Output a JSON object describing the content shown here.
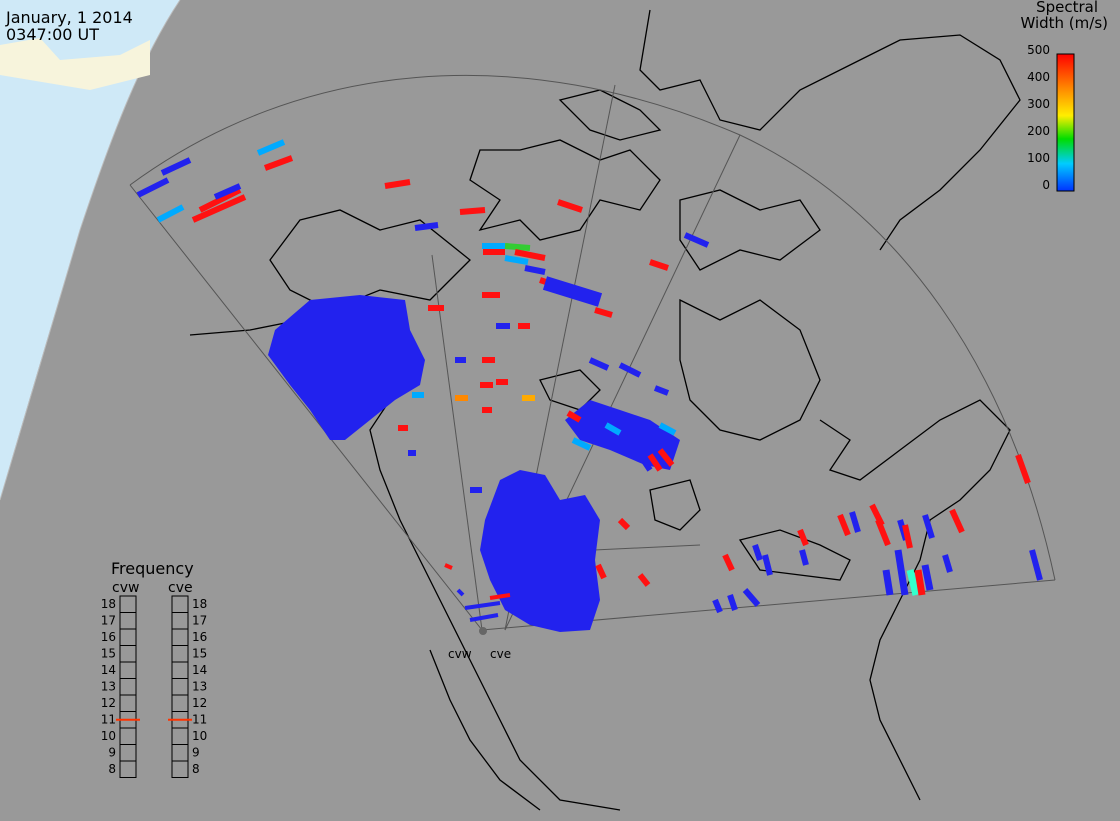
{
  "header": {
    "date": "January, 1 2014",
    "time": "0347:00 UT"
  },
  "colorbar": {
    "title_line1": "Spectral",
    "title_line2": "Width (m/s)",
    "ticks": [
      "500",
      "400",
      "300",
      "200",
      "100",
      "0"
    ],
    "min": 0,
    "max": 500,
    "colors": [
      "#ff0000",
      "#ff8800",
      "#ffee00",
      "#00dd00",
      "#00ccff",
      "#0033ff"
    ]
  },
  "frequency_panel": {
    "title": "Frequency",
    "radars": [
      {
        "name": "cvw",
        "frequency_mhz": 11
      },
      {
        "name": "cve",
        "frequency_mhz": 11
      }
    ],
    "scale": [
      "18",
      "17",
      "16",
      "15",
      "14",
      "13",
      "12",
      "11",
      "10",
      "9",
      "8"
    ],
    "indicator_color": "#ff3300"
  },
  "radar_sites": [
    {
      "name": "cvw",
      "label": "cvw"
    },
    {
      "name": "cve",
      "label": "cve"
    }
  ],
  "colors": {
    "background": "#999999",
    "night_side": "#cfe9f7",
    "low": "#2222ee",
    "mid": "#00aaff",
    "high": "#ff1111"
  }
}
